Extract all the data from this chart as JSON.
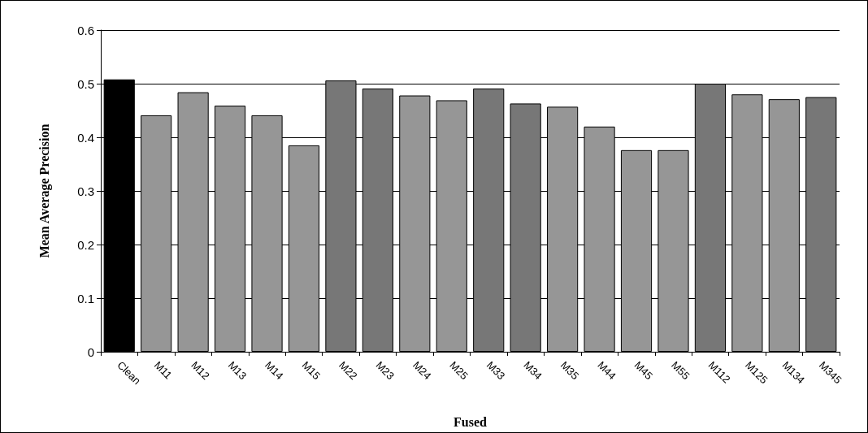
{
  "chart_data": {
    "type": "bar",
    "xlabel": "Fused",
    "ylabel": "Mean Average Precision",
    "categories": [
      "Clean",
      "M11",
      "M12",
      "M13",
      "M14",
      "M15",
      "M22",
      "M23",
      "M24",
      "M25",
      "M33",
      "M34",
      "M35",
      "M44",
      "M45",
      "M55",
      "M112",
      "M125",
      "M134",
      "M345"
    ],
    "values": [
      0.508,
      0.441,
      0.484,
      0.459,
      0.441,
      0.385,
      0.506,
      0.491,
      0.478,
      0.469,
      0.491,
      0.463,
      0.457,
      0.42,
      0.376,
      0.376,
      0.5,
      0.48,
      0.471,
      0.475
    ],
    "colors": [
      "#000000",
      "#969696",
      "#969696",
      "#969696",
      "#969696",
      "#969696",
      "#777777",
      "#777777",
      "#969696",
      "#969696",
      "#777777",
      "#777777",
      "#969696",
      "#969696",
      "#969696",
      "#969696",
      "#777777",
      "#969696",
      "#969696",
      "#777777"
    ],
    "ylim": [
      0,
      0.6
    ],
    "yticks": [
      0,
      0.1,
      0.2,
      0.3,
      0.4,
      0.5,
      0.6
    ],
    "grid": "y"
  }
}
